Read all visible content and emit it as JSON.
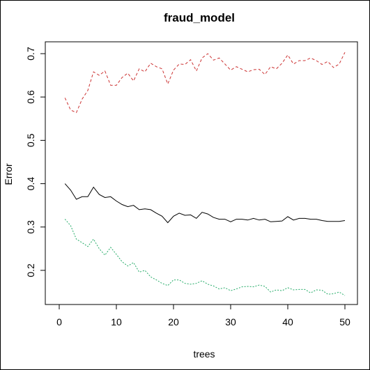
{
  "chart_data": {
    "type": "line",
    "title": "fraud_model",
    "xlabel": "trees",
    "ylabel": "Error",
    "xlim": [
      1,
      50
    ],
    "ylim": [
      0.14,
      0.7
    ],
    "x_ticks": [
      "0",
      "10",
      "20",
      "30",
      "40",
      "50"
    ],
    "y_ticks": [
      "0.2",
      "0.3",
      "0.4",
      "0.5",
      "0.6",
      "0.7"
    ],
    "grid": false,
    "x": [
      1,
      2,
      3,
      4,
      5,
      6,
      7,
      8,
      9,
      10,
      11,
      12,
      13,
      14,
      15,
      16,
      17,
      18,
      19,
      20,
      21,
      22,
      23,
      24,
      25,
      26,
      27,
      28,
      29,
      30,
      31,
      32,
      33,
      34,
      35,
      36,
      37,
      38,
      39,
      40,
      41,
      42,
      43,
      44,
      45,
      46,
      47,
      48,
      49,
      50
    ],
    "series": [
      {
        "color": "#000000",
        "dash": "solid",
        "values": [
          0.4,
          0.385,
          0.364,
          0.37,
          0.37,
          0.392,
          0.375,
          0.368,
          0.37,
          0.36,
          0.352,
          0.347,
          0.35,
          0.34,
          0.342,
          0.34,
          0.332,
          0.325,
          0.31,
          0.325,
          0.332,
          0.327,
          0.328,
          0.32,
          0.334,
          0.33,
          0.322,
          0.318,
          0.318,
          0.312,
          0.318,
          0.318,
          0.316,
          0.32,
          0.316,
          0.318,
          0.312,
          0.313,
          0.314,
          0.324,
          0.316,
          0.32,
          0.32,
          0.318,
          0.318,
          0.315,
          0.313,
          0.313,
          0.313,
          0.315
        ]
      },
      {
        "color": "#cc3333",
        "dash": "dashed",
        "values": [
          0.598,
          0.57,
          0.564,
          0.595,
          0.615,
          0.658,
          0.65,
          0.66,
          0.627,
          0.627,
          0.645,
          0.655,
          0.637,
          0.665,
          0.658,
          0.678,
          0.67,
          0.665,
          0.63,
          0.662,
          0.676,
          0.675,
          0.686,
          0.66,
          0.69,
          0.7,
          0.685,
          0.69,
          0.676,
          0.662,
          0.67,
          0.664,
          0.658,
          0.663,
          0.664,
          0.652,
          0.67,
          0.665,
          0.678,
          0.697,
          0.676,
          0.684,
          0.684,
          0.69,
          0.684,
          0.675,
          0.682,
          0.668,
          0.676,
          0.703
        ]
      },
      {
        "color": "#22aa66",
        "dash": "dotted",
        "values": [
          0.318,
          0.303,
          0.272,
          0.264,
          0.255,
          0.272,
          0.25,
          0.235,
          0.253,
          0.237,
          0.22,
          0.21,
          0.218,
          0.196,
          0.2,
          0.185,
          0.178,
          0.17,
          0.165,
          0.178,
          0.178,
          0.17,
          0.168,
          0.17,
          0.176,
          0.168,
          0.164,
          0.157,
          0.16,
          0.153,
          0.157,
          0.162,
          0.163,
          0.162,
          0.166,
          0.163,
          0.15,
          0.155,
          0.153,
          0.16,
          0.155,
          0.156,
          0.156,
          0.148,
          0.155,
          0.154,
          0.145,
          0.146,
          0.15,
          0.142
        ]
      }
    ]
  }
}
